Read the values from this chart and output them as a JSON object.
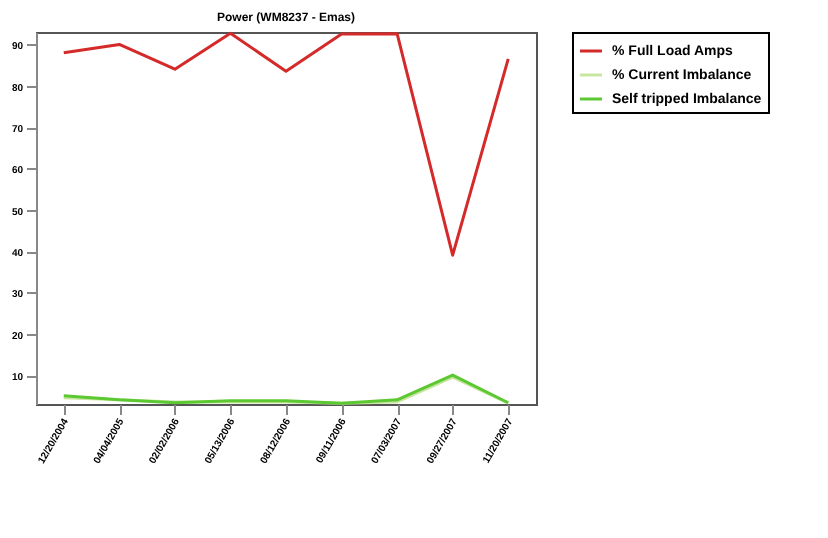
{
  "chart_data": {
    "type": "line",
    "title": "Power (WM8237 - Emas)",
    "categories": [
      "12/20/2004",
      "04/04/2005",
      "02/02/2006",
      "05/13/2006",
      "08/12/2006",
      "09/11/2006",
      "07/03/2007",
      "09/27/2007",
      "11/20/2007"
    ],
    "series": [
      {
        "name": "% Full Load Amps",
        "color": "#d42a2a",
        "values": [
          88,
          90,
          84,
          92.7,
          83.5,
          92.5,
          92.6,
          39,
          86.5
        ]
      },
      {
        "name": "% Current Imbalance",
        "color": "#c8e6a0",
        "values": [
          4.5,
          4,
          3.5,
          3.5,
          3.5,
          3.2,
          3.5,
          9.5,
          3.2
        ]
      },
      {
        "name": "Self tripped Imbalance",
        "color": "#5cc832",
        "values": [
          5,
          4,
          3.3,
          3.8,
          3.8,
          3.2,
          4,
          10,
          3.3
        ]
      }
    ],
    "ylim": [
      3,
      93
    ],
    "yticks": [
      10,
      20,
      30,
      40,
      50,
      60,
      70,
      80,
      90
    ],
    "grid": false,
    "legend": "right",
    "marker": "none",
    "line_style": "solid"
  }
}
